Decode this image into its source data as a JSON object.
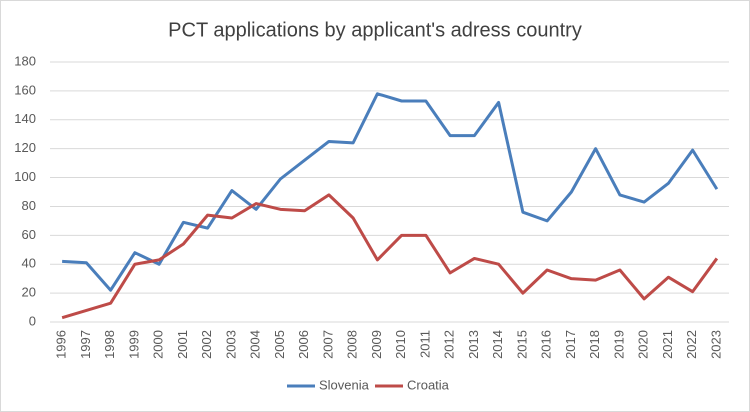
{
  "chart_data": {
    "type": "line",
    "title": "PCT applications by applicant's adress country",
    "categories": [
      "1996",
      "1997",
      "1998",
      "1999",
      "2000",
      "2001",
      "2002",
      "2003",
      "2004",
      "2005",
      "2006",
      "2007",
      "2008",
      "2009",
      "2010",
      "2011",
      "2012",
      "2013",
      "2014",
      "2015",
      "2016",
      "2017",
      "2018",
      "2019",
      "2020",
      "2021",
      "2022",
      "2023"
    ],
    "series": [
      {
        "name": "Slovenia",
        "color": "#4a7ebb",
        "values": [
          42,
          41,
          22,
          48,
          40,
          69,
          65,
          91,
          78,
          99,
          112,
          125,
          124,
          158,
          153,
          153,
          129,
          129,
          152,
          76,
          70,
          90,
          120,
          88,
          83,
          96,
          119,
          92
        ]
      },
      {
        "name": "Croatia",
        "color": "#be4b48",
        "values": [
          3,
          8,
          13,
          40,
          43,
          54,
          74,
          72,
          82,
          78,
          77,
          88,
          72,
          43,
          60,
          60,
          34,
          44,
          40,
          20,
          36,
          30,
          29,
          36,
          16,
          31,
          21,
          44
        ]
      }
    ],
    "ylim": [
      0,
      180
    ],
    "yticks": [
      0,
      20,
      40,
      60,
      80,
      100,
      120,
      140,
      160,
      180
    ],
    "grid": true,
    "legend": "bottom"
  }
}
